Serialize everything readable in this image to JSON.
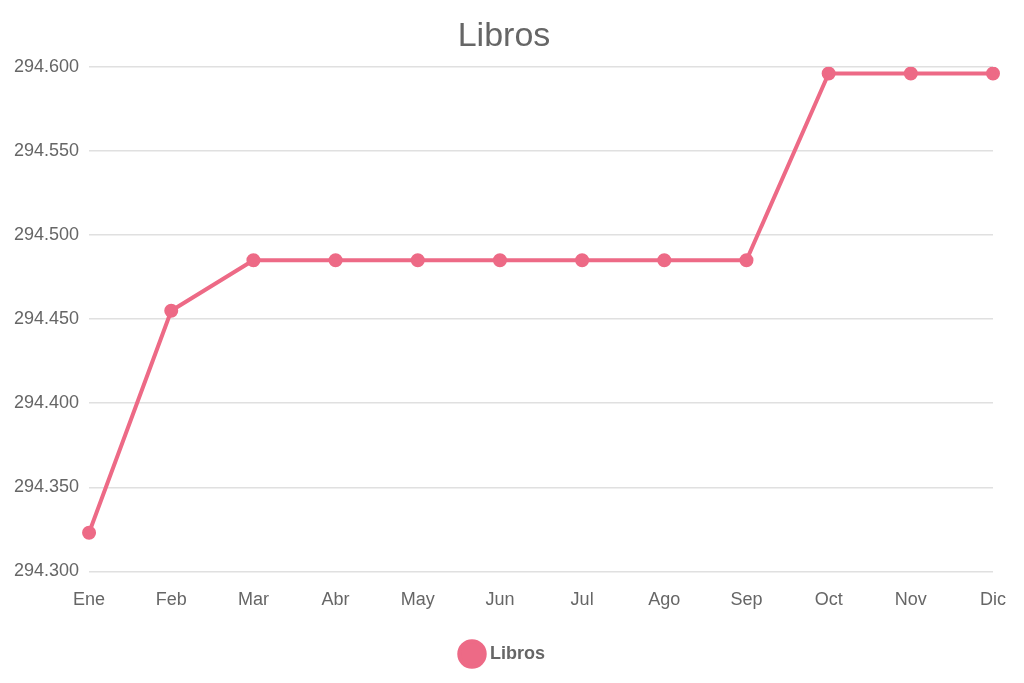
{
  "chart_data": {
    "type": "line",
    "title": "Libros",
    "categories": [
      "Ene",
      "Feb",
      "Mar",
      "Abr",
      "May",
      "Jun",
      "Jul",
      "Ago",
      "Sep",
      "Oct",
      "Nov",
      "Dic"
    ],
    "series": [
      {
        "name": "Libros",
        "color": "#ed6a86",
        "values": [
          294323,
          294455,
          294485,
          294485,
          294485,
          294485,
          294485,
          294485,
          294485,
          294596,
          294596,
          294596
        ]
      }
    ],
    "ylim": [
      294300,
      294600
    ],
    "yticks": [
      {
        "value": 294300,
        "label": "294.300"
      },
      {
        "value": 294350,
        "label": "294.350"
      },
      {
        "value": 294400,
        "label": "294.400"
      },
      {
        "value": 294450,
        "label": "294.450"
      },
      {
        "value": 294500,
        "label": "294.500"
      },
      {
        "value": 294550,
        "label": "294.550"
      },
      {
        "value": 294600,
        "label": "294.600"
      }
    ],
    "grid": "y",
    "legend": "bottom",
    "marker": "circle",
    "line_style": "solid"
  }
}
